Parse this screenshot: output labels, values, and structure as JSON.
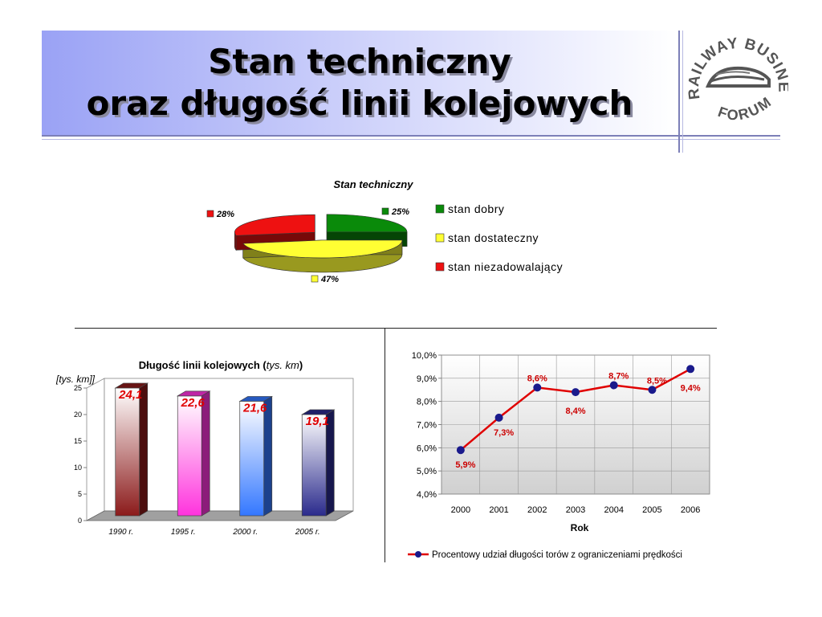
{
  "slide": {
    "title_line1": "Stan techniczny",
    "title_line2": "oraz długość linii kolejowych",
    "logo_text_top": "RAILWAY BUSINESS",
    "logo_text_bottom": "FORUM"
  },
  "colors": {
    "green": "#0a8a0a",
    "yellow": "#ffff33",
    "red": "#ee1111",
    "line": "#e00000",
    "marker": "#1a1a8c"
  },
  "chart_data": [
    {
      "type": "pie",
      "title": "Stan techniczny",
      "categories": [
        "stan dobry",
        "stan dostateczny",
        "stan niezadowalający"
      ],
      "values": [
        25,
        47,
        28
      ],
      "data_labels": [
        "25%",
        "47%",
        "28%"
      ],
      "colors": [
        "#0a8a0a",
        "#ffff33",
        "#ee1111"
      ],
      "legend": "right"
    },
    {
      "type": "bar",
      "title": "Długość linii kolejowych (",
      "title_unit": "tys. km",
      "title_close": ")",
      "ylabel": "[tys. km]]",
      "categories": [
        "1990 r.",
        "1995 r.",
        "2000 r.",
        "2005 r."
      ],
      "values": [
        24.1,
        22.6,
        21.6,
        19.1
      ],
      "data_labels": [
        "24,1",
        "22,6",
        "21,6",
        "19,1"
      ],
      "yticks": [
        "0",
        "5",
        "10",
        "15",
        "20",
        "25"
      ],
      "ylim": [
        0,
        25
      ],
      "colors": [
        "#8b1a1a",
        "#ff33dd",
        "#3377ff",
        "#2a2a8c"
      ]
    },
    {
      "type": "line",
      "xlabel": "Rok",
      "x": [
        "2000",
        "2001",
        "2002",
        "2003",
        "2004",
        "2005",
        "2006"
      ],
      "series": [
        {
          "name": "Procentowy udział długości torów z ograniczeniami prędkości",
          "values": [
            5.9,
            7.3,
            8.6,
            8.4,
            8.7,
            8.5,
            9.4
          ],
          "data_labels": [
            "5,9%",
            "7,3%",
            "8,6%",
            "8,4%",
            "8,7%",
            "8,5%",
            "9,4%"
          ]
        }
      ],
      "yticks": [
        "4,0%",
        "5,0%",
        "6,0%",
        "7,0%",
        "8,0%",
        "9,0%",
        "10,0%"
      ],
      "ylim": [
        4,
        10
      ],
      "grid": true,
      "legend": "bottom"
    }
  ]
}
